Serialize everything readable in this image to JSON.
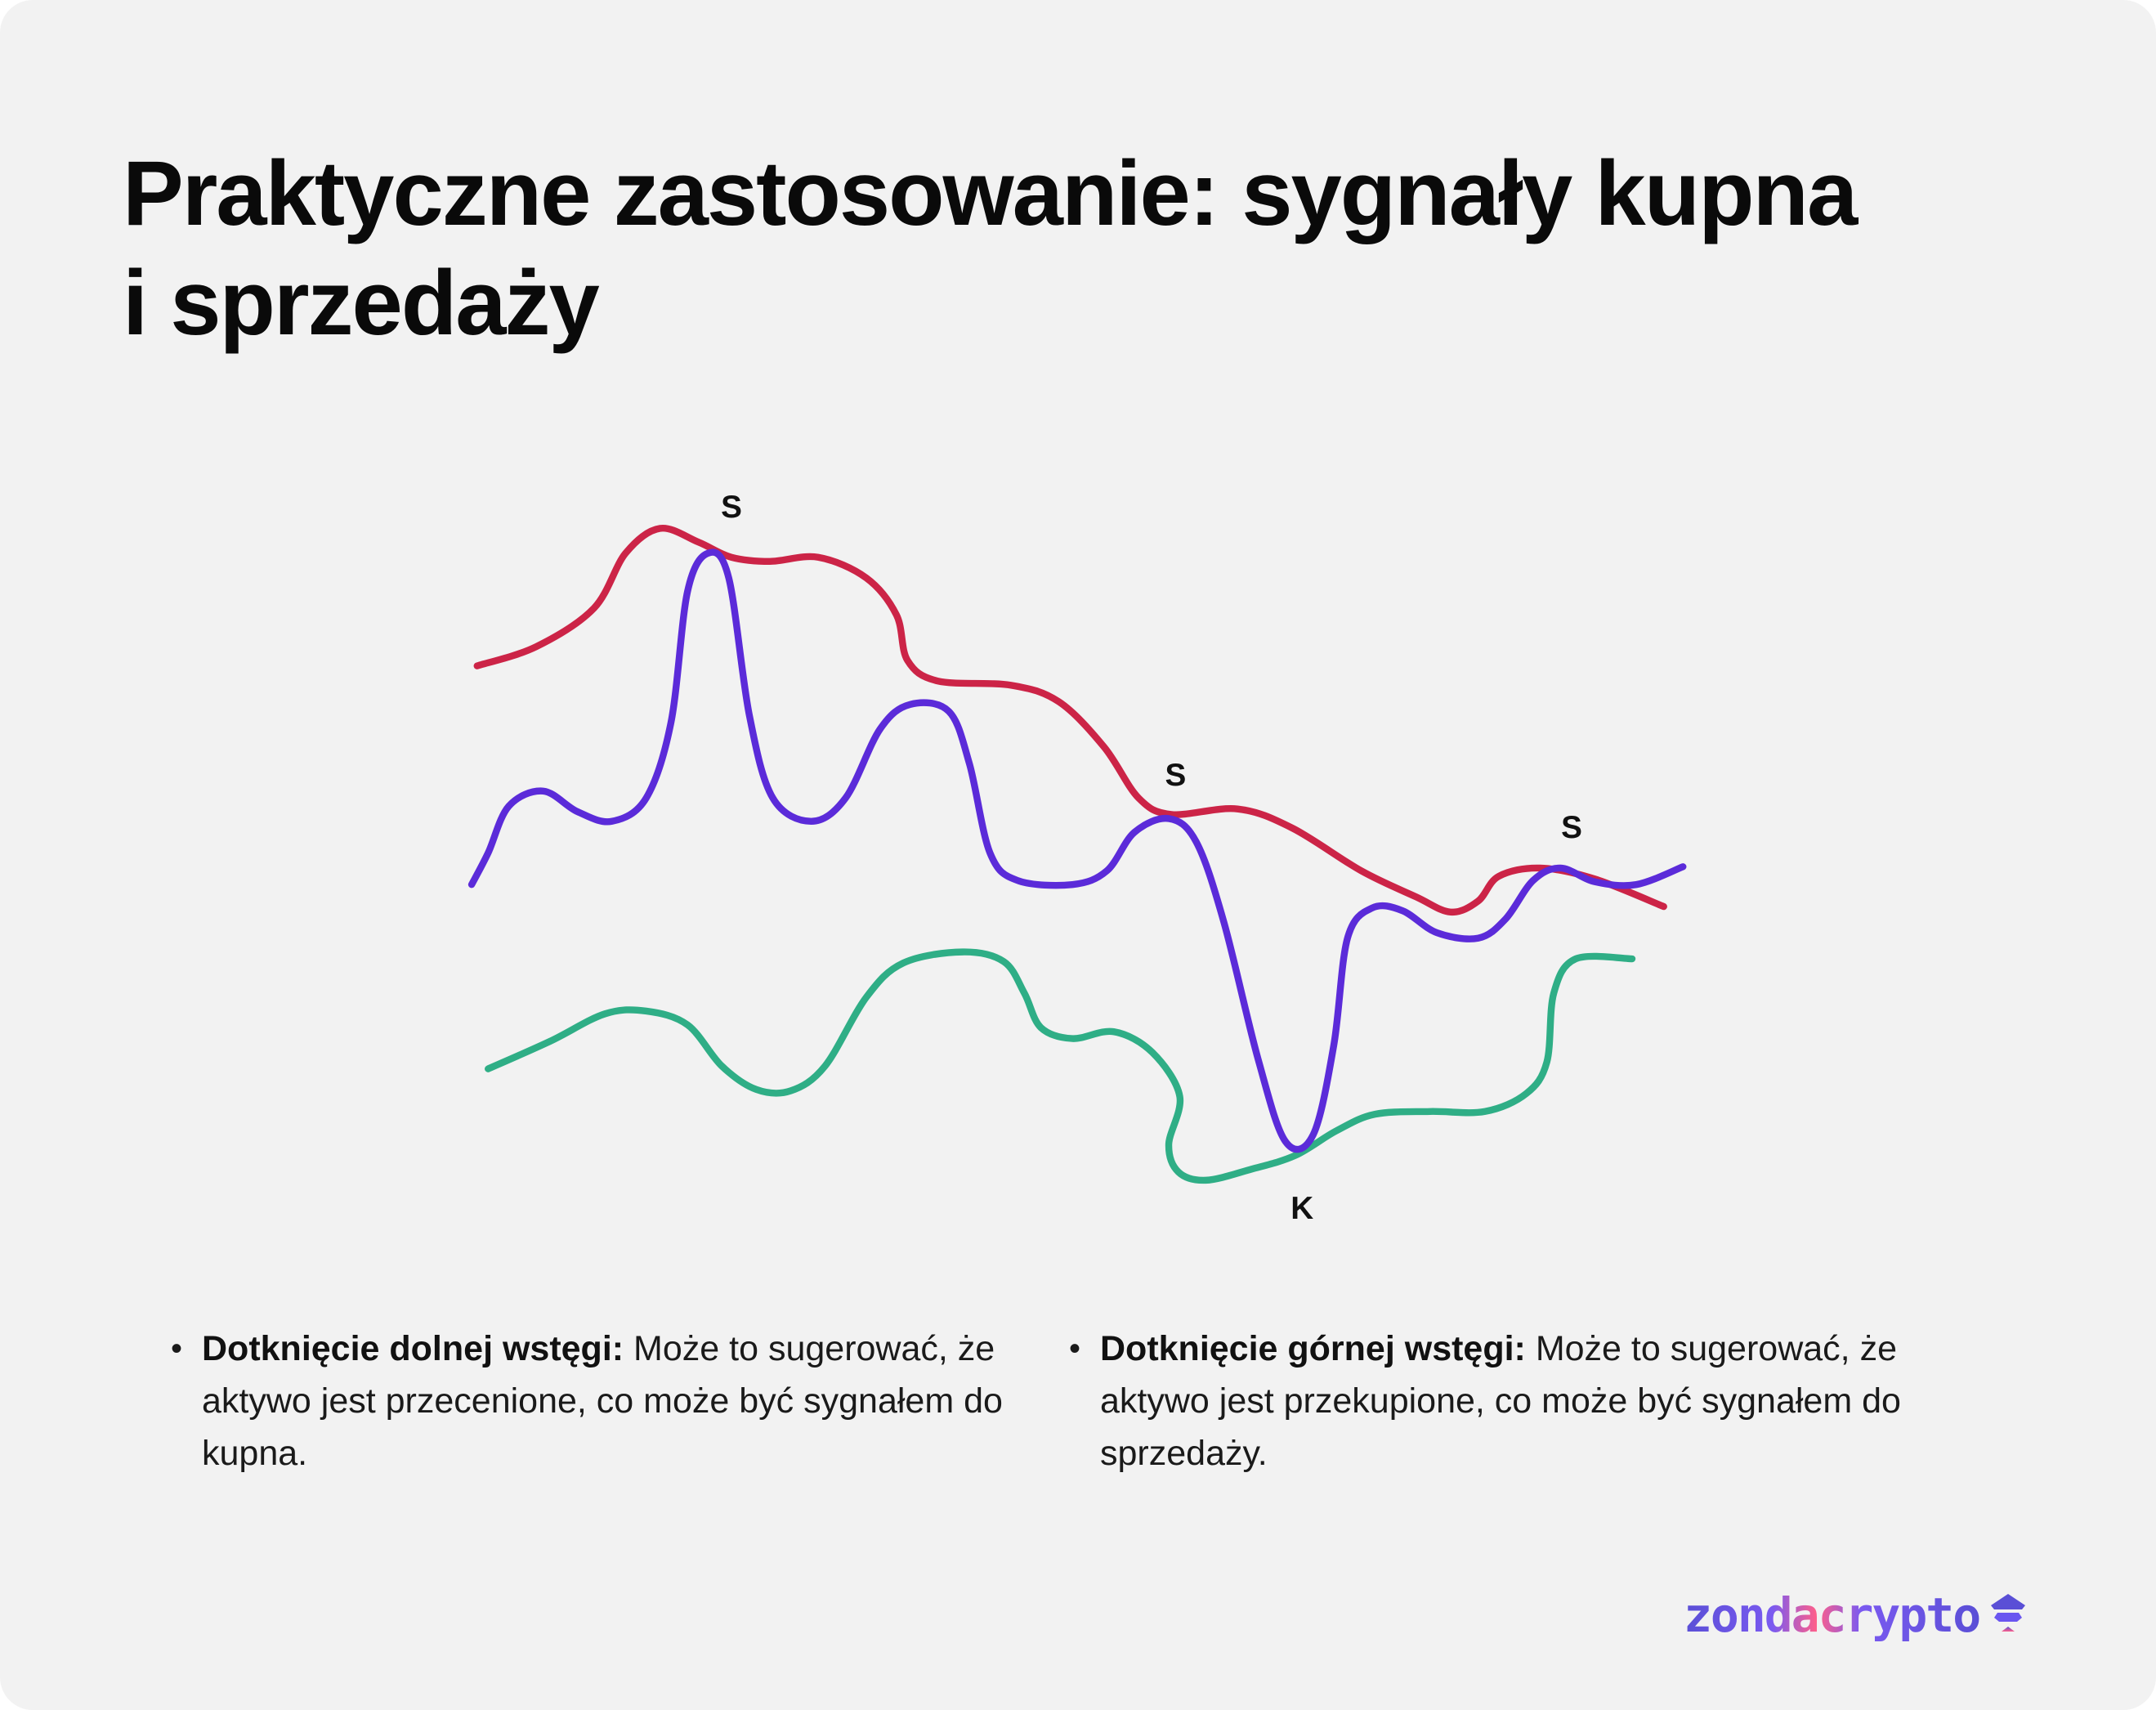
{
  "title": {
    "line1": "Praktyczne zastosowanie: sygnały kupna",
    "line2": "i sprzedaży"
  },
  "diagram": {
    "labels": {
      "sell_1": "S",
      "sell_2": "S",
      "sell_3": "S",
      "buy_1": "K"
    },
    "colors": {
      "upper_band": "#cc2447",
      "price": "#5b2bd9",
      "lower_band": "#2fae86",
      "background": "#f2f2f2"
    }
  },
  "bullets": [
    {
      "bold": "Dotknięcie dolnej wstęgi:",
      "text": " Może to sugerować, że aktywo jest przecenione, co może być sygnałem do kupna."
    },
    {
      "bold": "Dotknięcie górnej wstęgi:",
      "text": " Może to sugerować, że aktywo jest przekupione, co może być sygnałem do sprzedaży."
    }
  ],
  "logo": {
    "text": "zondacrypto"
  }
}
